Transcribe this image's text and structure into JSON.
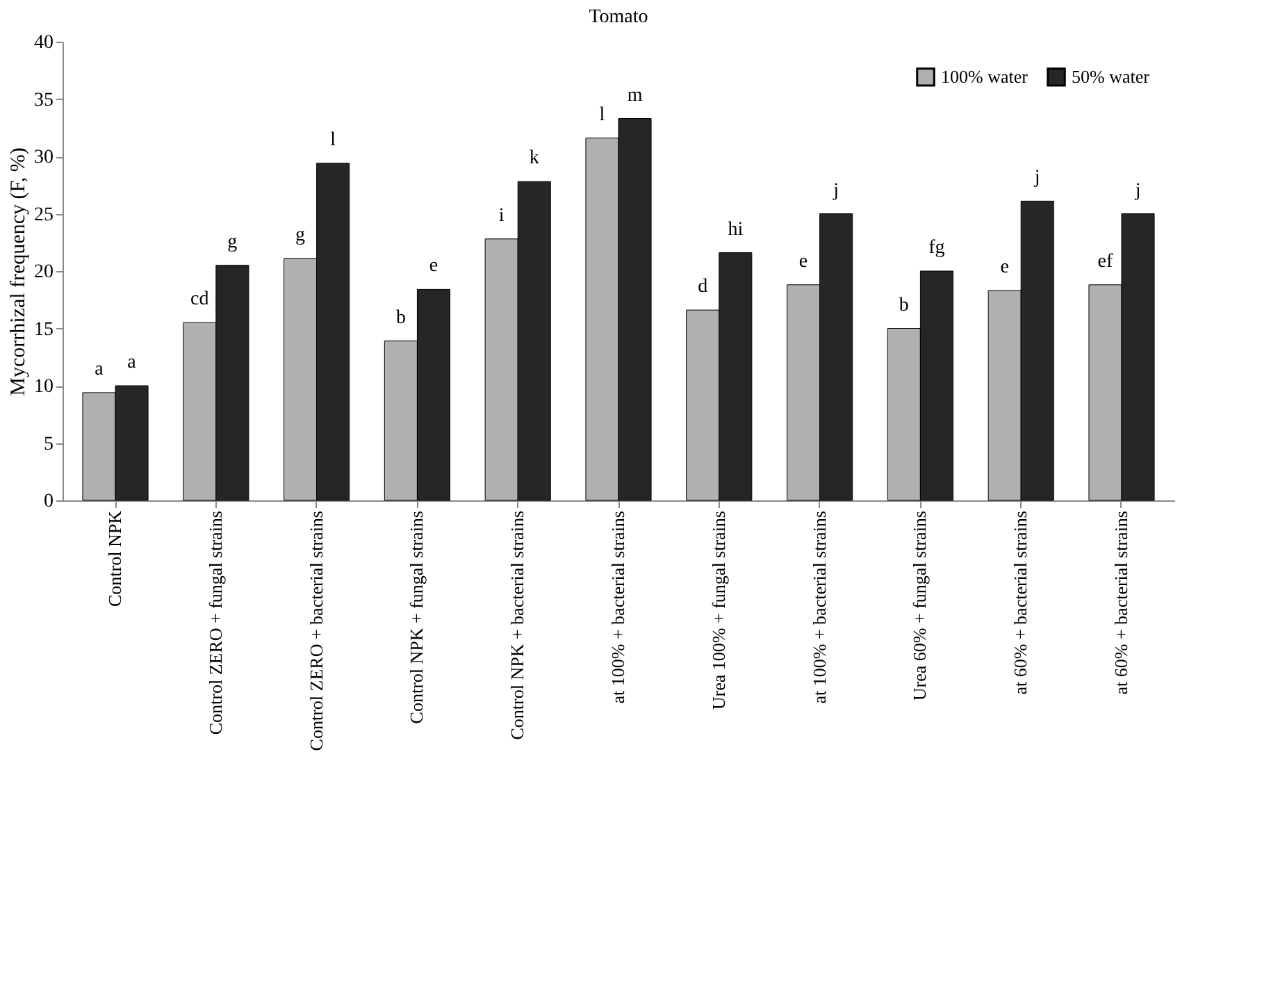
{
  "chart_data": {
    "type": "bar",
    "title": "Tomato",
    "ylabel": "Mycorrhizal frequency (F, %)",
    "categories": [
      "Control NPK",
      "Control ZERO + fungal strains",
      "Control ZERO + bacterial strains",
      "Control NPK + fungal strains",
      "Control NPK + bacterial strains",
      "at 100% + bacterial strains",
      "Urea 100% + fungal strains",
      "at 100% + bacterial strains",
      "Urea 60% + fungal strains",
      "at 60% + bacterial strains",
      "at 60% + bacterial strains"
    ],
    "series": [
      {
        "name": "100% water",
        "color": "#b0b0b0",
        "values": [
          9.4,
          15.5,
          21.1,
          13.9,
          22.8,
          31.6,
          16.6,
          18.8,
          15.0,
          18.3,
          18.8
        ],
        "value_labels": [
          "a",
          "cd",
          "g",
          "b",
          "i",
          "l",
          "d",
          "e",
          "b",
          "e",
          "ef"
        ]
      },
      {
        "name": "50% water",
        "color": "#262626",
        "values": [
          10.0,
          20.5,
          29.4,
          18.4,
          27.8,
          33.3,
          21.6,
          25.0,
          20.0,
          26.1,
          25.0
        ],
        "value_labels": [
          "a",
          "g",
          "l",
          "e",
          "k",
          "m",
          "hi",
          "j",
          "fg",
          "j",
          "j"
        ]
      }
    ],
    "ylim": [
      0,
      40
    ],
    "yticks": [
      0,
      5,
      10,
      15,
      20,
      25,
      30,
      35,
      40
    ],
    "grid": false,
    "legend": "top right"
  }
}
